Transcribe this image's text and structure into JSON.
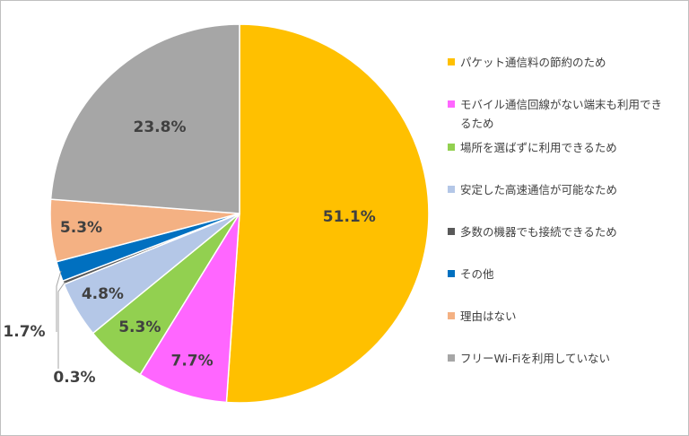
{
  "chart_data": {
    "type": "pie",
    "start_angle_deg": 0,
    "direction": "clockwise",
    "slices": [
      {
        "label": "パケット通信料の節約のため",
        "value": 51.1,
        "display": "51.1%",
        "color": "#FFC000"
      },
      {
        "label": "モバイル通信回線がない端末も利用できるため",
        "value": 7.7,
        "display": "7.7%",
        "color": "#FF66FF"
      },
      {
        "label": "場所を選ばずに利用できるため",
        "value": 5.3,
        "display": "5.3%",
        "color": "#92D050"
      },
      {
        "label": "安定した高速通信が可能なため",
        "value": 4.8,
        "display": "4.8%",
        "color": "#B4C7E7"
      },
      {
        "label": "多数の機器でも接続できるため",
        "value": 0.3,
        "display": "0.3%",
        "color": "#595959"
      },
      {
        "label": "その他",
        "value": 1.7,
        "display": "1.7%",
        "color": "#0070C0"
      },
      {
        "label": "理由はない",
        "value": 5.3,
        "display": "5.3%",
        "color": "#F4B183"
      },
      {
        "label": "フリーWi-Fiを利用していない",
        "value": 23.8,
        "display": "23.8%",
        "color": "#A6A6A6"
      }
    ],
    "legend_position": "right"
  }
}
